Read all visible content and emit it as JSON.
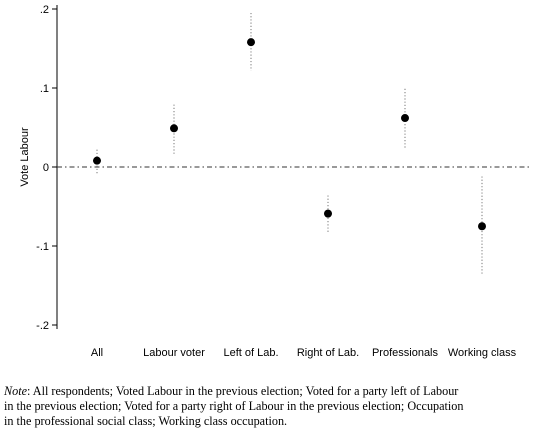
{
  "chart_data": {
    "type": "scatter",
    "ylabel": "Vote Labour",
    "xlabel": "",
    "ylim": [
      -0.2,
      0.2
    ],
    "yticks": [
      ".2",
      ".1",
      "0",
      "-.1",
      "-.2"
    ],
    "ytick_values": [
      0.2,
      0.1,
      0,
      -0.1,
      -0.2
    ],
    "categories": [
      "All",
      "Labour voter",
      "Left of Lab.",
      "Right of Lab.",
      "Professionals",
      "Working class"
    ],
    "values": [
      0.008,
      0.049,
      0.158,
      -0.059,
      0.062,
      -0.075
    ],
    "ci_low": [
      -0.009,
      0.016,
      0.122,
      -0.083,
      0.023,
      -0.137
    ],
    "ci_high": [
      0.022,
      0.079,
      0.195,
      -0.036,
      0.099,
      -0.012
    ],
    "reference_line": 0,
    "grid": false
  },
  "note": {
    "lead": "Note",
    "line1": ": All respondents; Voted Labour in the previous election; Voted for a party left of Labour",
    "line2": "in the previous election; Voted for a party right of Labour in the previous election; Occupation",
    "line3": "in the professional social class; Working class occupation."
  }
}
